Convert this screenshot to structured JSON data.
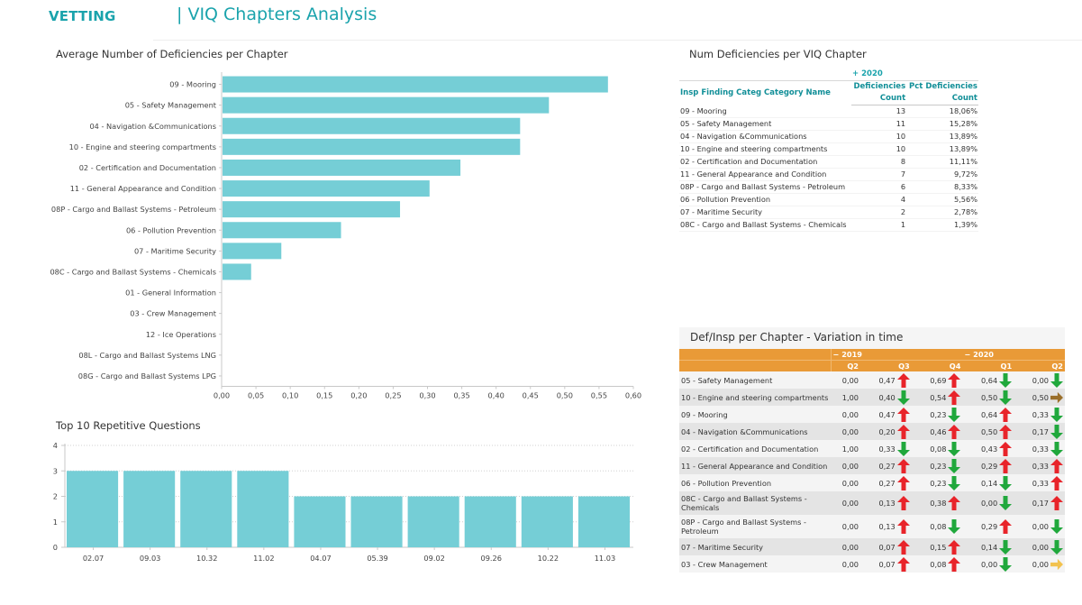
{
  "header": {
    "brand": "VETTING",
    "title": "| VIQ Chapters Analysis"
  },
  "colors": {
    "accent": "#1aa3ac",
    "bar": "#75ced6",
    "matrix_header": "#e99a37",
    "arrow_up": "#e8242a",
    "arrow_down": "#20a83c",
    "arrow_flat_brown": "#9a6f2a",
    "arrow_flat_yellow": "#f2c24e"
  },
  "avg_deficiencies": {
    "title": "Average Number of Deficiencies per Chapter"
  },
  "top10": {
    "title": "Top 10 Repetitive Questions"
  },
  "chart_data": [
    {
      "type": "bar",
      "orientation": "horizontal",
      "title": "Average Number of Deficiencies per Chapter",
      "xlabel": "",
      "ylabel": "",
      "xlim": [
        0,
        0.6
      ],
      "xticks": [
        "0,00",
        "0,05",
        "0,10",
        "0,15",
        "0,20",
        "0,25",
        "0,30",
        "0,35",
        "0,40",
        "0,45",
        "0,50",
        "0,55",
        "0,60"
      ],
      "grid": false,
      "categories": [
        "09 - Mooring",
        "05 - Safety Management",
        "04 - Navigation &Communications",
        "10 - Engine and steering compartments",
        "02 - Certification and Documentation",
        "11 - General Appearance and Condition",
        "08P - Cargo and Ballast Systems - Petroleum",
        "06 - Pollution Prevention",
        "07 - Maritime Security",
        "08C - Cargo and Ballast Systems - Chemicals",
        "01 - General Information",
        "03 - Crew Management",
        "12 - Ice Operations",
        "08L - Cargo and Ballast Systems LNG",
        "08G - Cargo and Ballast Systems LPG"
      ],
      "values": [
        0.563,
        0.477,
        0.435,
        0.435,
        0.348,
        0.303,
        0.26,
        0.174,
        0.087,
        0.043,
        0,
        0,
        0,
        0,
        0
      ]
    },
    {
      "type": "bar",
      "orientation": "vertical",
      "title": "Top 10 Repetitive Questions",
      "xlabel": "",
      "ylabel": "",
      "ylim": [
        0,
        4
      ],
      "yticks": [
        "0",
        "1",
        "2",
        "3",
        "4"
      ],
      "grid": true,
      "categories": [
        "02.07",
        "09.03",
        "10.32",
        "11.02",
        "04.07",
        "05.39",
        "09.02",
        "09.26",
        "10.22",
        "11.03"
      ],
      "values": [
        3,
        3,
        3,
        3,
        2,
        2,
        2,
        2,
        2,
        2
      ]
    }
  ],
  "deficiency_table": {
    "title": "Num Deficiencies per VIQ Chapter",
    "year_label": "+ 2020",
    "col_name": "Insp Finding Categ Category Name",
    "col_count_l1": "Deficiencies",
    "col_count_l2": "Count",
    "col_pct_l1": "Pct Deficiencies",
    "col_pct_l2": "Count",
    "rows": [
      {
        "name": "09 - Mooring",
        "count": "13",
        "pct": "18,06%"
      },
      {
        "name": "05 - Safety Management",
        "count": "11",
        "pct": "15,28%"
      },
      {
        "name": "04 - Navigation &Communications",
        "count": "10",
        "pct": "13,89%"
      },
      {
        "name": "10 - Engine and steering compartments",
        "count": "10",
        "pct": "13,89%"
      },
      {
        "name": "02 - Certification and Documentation",
        "count": "8",
        "pct": "11,11%"
      },
      {
        "name": "11 - General Appearance and Condition",
        "count": "7",
        "pct": "9,72%"
      },
      {
        "name": "08P - Cargo and Ballast Systems - Petroleum",
        "count": "6",
        "pct": "8,33%"
      },
      {
        "name": "06 - Pollution Prevention",
        "count": "4",
        "pct": "5,56%"
      },
      {
        "name": "07 - Maritime Security",
        "count": "2",
        "pct": "2,78%"
      },
      {
        "name": "08C - Cargo and Ballast Systems - Chemicals",
        "count": "1",
        "pct": "1,39%"
      }
    ]
  },
  "variation_matrix": {
    "title": "Def/Insp per Chapter - Variation in time",
    "year_2019": "− 2019",
    "year_2020": "− 2020",
    "quarters": [
      "Q2",
      "Q3",
      "Q4",
      "Q1",
      "Q2"
    ],
    "rows": [
      {
        "name": "05 - Safety Management",
        "cells": [
          {
            "v": "0,00",
            "a": ""
          },
          {
            "v": "0,47",
            "a": "up"
          },
          {
            "v": "0,69",
            "a": "up"
          },
          {
            "v": "0,64",
            "a": "down"
          },
          {
            "v": "0,00",
            "a": "down"
          }
        ]
      },
      {
        "name": "10 - Engine and steering compartments",
        "cells": [
          {
            "v": "1,00",
            "a": ""
          },
          {
            "v": "0,40",
            "a": "down"
          },
          {
            "v": "0,54",
            "a": "up"
          },
          {
            "v": "0,50",
            "a": "down"
          },
          {
            "v": "0,50",
            "a": "flat-brown"
          }
        ]
      },
      {
        "name": "09 - Mooring",
        "cells": [
          {
            "v": "0,00",
            "a": ""
          },
          {
            "v": "0,47",
            "a": "up"
          },
          {
            "v": "0,23",
            "a": "down"
          },
          {
            "v": "0,64",
            "a": "up"
          },
          {
            "v": "0,33",
            "a": "down"
          }
        ]
      },
      {
        "name": "04 - Navigation &Communications",
        "cells": [
          {
            "v": "0,00",
            "a": ""
          },
          {
            "v": "0,20",
            "a": "up"
          },
          {
            "v": "0,46",
            "a": "up"
          },
          {
            "v": "0,50",
            "a": "up"
          },
          {
            "v": "0,17",
            "a": "down"
          }
        ]
      },
      {
        "name": "02 - Certification and Documentation",
        "cells": [
          {
            "v": "1,00",
            "a": ""
          },
          {
            "v": "0,33",
            "a": "down"
          },
          {
            "v": "0,08",
            "a": "down"
          },
          {
            "v": "0,43",
            "a": "up"
          },
          {
            "v": "0,33",
            "a": "down"
          }
        ]
      },
      {
        "name": "11 - General Appearance and Condition",
        "cells": [
          {
            "v": "0,00",
            "a": ""
          },
          {
            "v": "0,27",
            "a": "up"
          },
          {
            "v": "0,23",
            "a": "down"
          },
          {
            "v": "0,29",
            "a": "up"
          },
          {
            "v": "0,33",
            "a": "up"
          }
        ]
      },
      {
        "name": "06 - Pollution Prevention",
        "cells": [
          {
            "v": "0,00",
            "a": ""
          },
          {
            "v": "0,27",
            "a": "up"
          },
          {
            "v": "0,23",
            "a": "down"
          },
          {
            "v": "0,14",
            "a": "down"
          },
          {
            "v": "0,33",
            "a": "up"
          }
        ]
      },
      {
        "name": "08C - Cargo and Ballast Systems - Chemicals",
        "cells": [
          {
            "v": "0,00",
            "a": ""
          },
          {
            "v": "0,13",
            "a": "up"
          },
          {
            "v": "0,38",
            "a": "up"
          },
          {
            "v": "0,00",
            "a": "down"
          },
          {
            "v": "0,17",
            "a": "up"
          }
        ]
      },
      {
        "name": "08P - Cargo and Ballast Systems - Petroleum",
        "cells": [
          {
            "v": "0,00",
            "a": ""
          },
          {
            "v": "0,13",
            "a": "up"
          },
          {
            "v": "0,08",
            "a": "down"
          },
          {
            "v": "0,29",
            "a": "up"
          },
          {
            "v": "0,00",
            "a": "down"
          }
        ]
      },
      {
        "name": "07 - Maritime Security",
        "cells": [
          {
            "v": "0,00",
            "a": ""
          },
          {
            "v": "0,07",
            "a": "up"
          },
          {
            "v": "0,15",
            "a": "up"
          },
          {
            "v": "0,14",
            "a": "down"
          },
          {
            "v": "0,00",
            "a": "down"
          }
        ]
      },
      {
        "name": "03 - Crew Management",
        "cells": [
          {
            "v": "0,00",
            "a": ""
          },
          {
            "v": "0,07",
            "a": "up"
          },
          {
            "v": "0,08",
            "a": "up"
          },
          {
            "v": "0,00",
            "a": "down"
          },
          {
            "v": "0,00",
            "a": "flat-yellow"
          }
        ]
      }
    ]
  }
}
